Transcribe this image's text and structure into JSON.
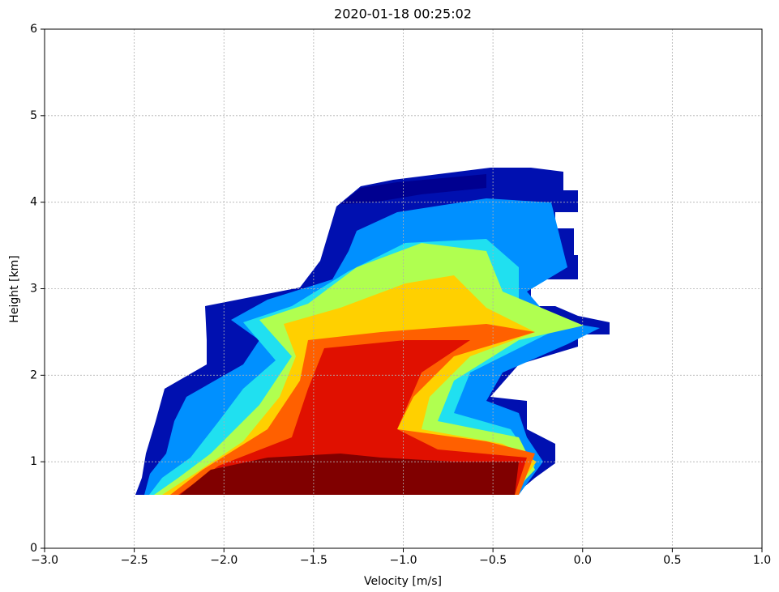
{
  "chart_data": {
    "type": "heatmap",
    "title": "2020-01-18 00:25:02",
    "x_label": "Velocity [m/s]",
    "y_label": "Height [km]",
    "xlim": [
      -3,
      1
    ],
    "xticks": [
      {
        "value": -3,
        "label": "−3.0"
      },
      {
        "value": -2.5,
        "label": "−2.5"
      },
      {
        "value": -2,
        "label": "−2.0"
      },
      {
        "value": -1.5,
        "label": "−1.5"
      },
      {
        "value": -1,
        "label": "−1.0"
      },
      {
        "value": -0.5,
        "label": "−0.5"
      },
      {
        "value": 0,
        "label": "0.0"
      },
      {
        "value": 0.5,
        "label": "0.5"
      },
      {
        "value": 1,
        "label": "1.0"
      }
    ],
    "ylim": [
      0,
      6
    ],
    "yticks": [
      0,
      1,
      2,
      3,
      4,
      5,
      6
    ],
    "grid": true
  }
}
